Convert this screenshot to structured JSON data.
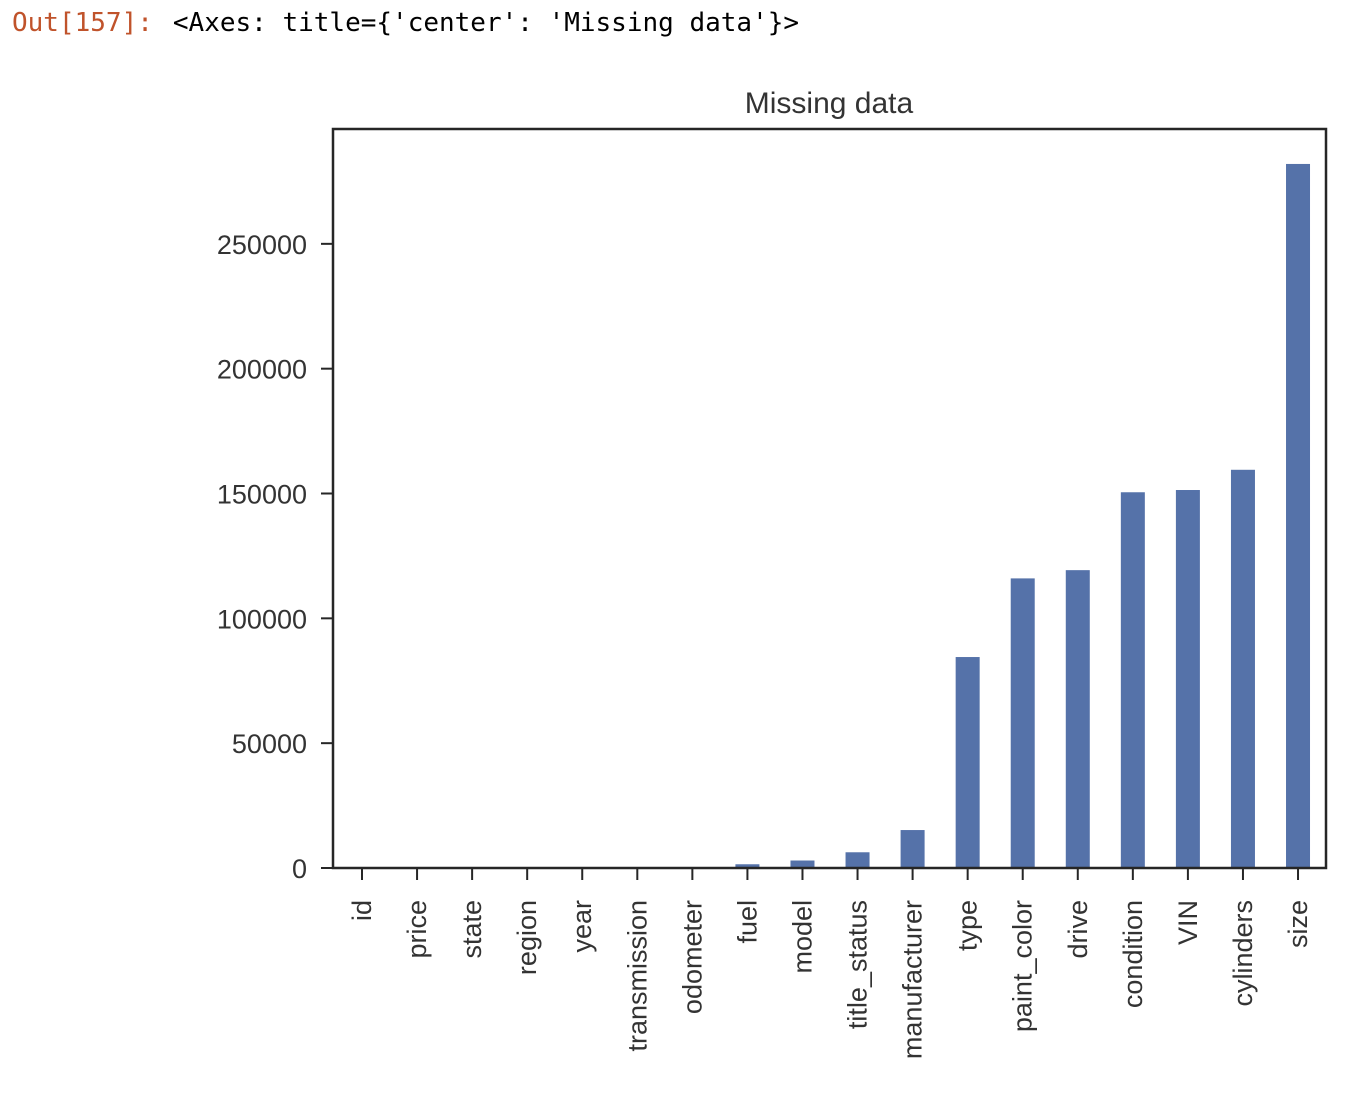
{
  "cell": {
    "prompt": "Out[157]:",
    "output_text": "<Axes: title={'center': 'Missing data'}>"
  },
  "colors": {
    "bar": "#5572a9",
    "axis": "#262626",
    "prompt": "#c0532b"
  },
  "chart_data": {
    "type": "bar",
    "title": "Missing data",
    "xlabel": "",
    "ylabel": "",
    "grid": false,
    "ylim": [
      0,
      296000
    ],
    "yticks": [
      0,
      50000,
      100000,
      150000,
      200000,
      250000
    ],
    "categories": [
      "id",
      "price",
      "state",
      "region",
      "year",
      "transmission",
      "odometer",
      "fuel",
      "model",
      "title_status",
      "manufacturer",
      "type",
      "paint_color",
      "drive",
      "condition",
      "VIN",
      "cylinders",
      "size"
    ],
    "values": [
      0,
      0,
      0,
      0,
      0,
      0,
      0,
      1500,
      3000,
      6300,
      15200,
      84500,
      116000,
      119300,
      150500,
      151400,
      159500,
      282000
    ]
  }
}
